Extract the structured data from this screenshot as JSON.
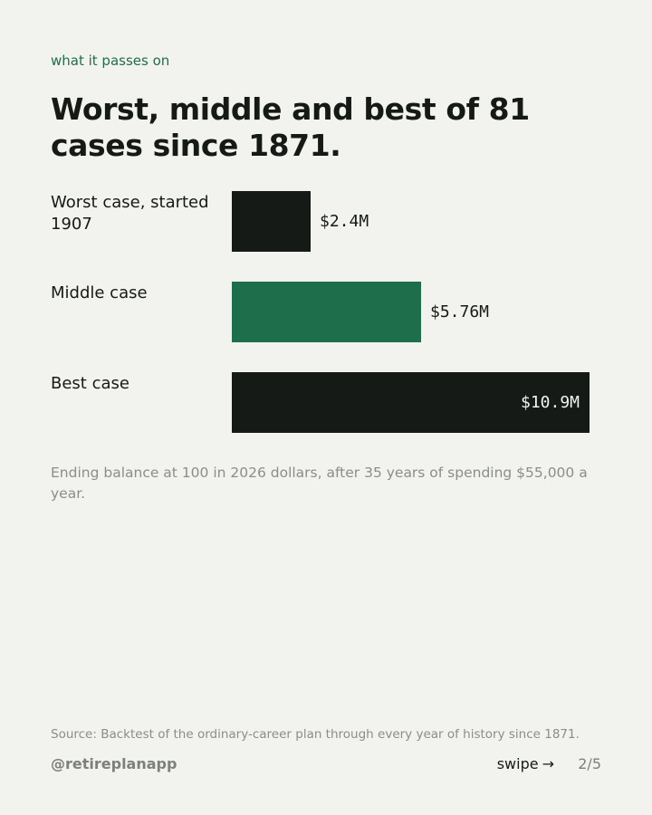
{
  "kicker": "what it passes on",
  "title": "Worst, middle and best of 81 cases since 1871.",
  "chart_data": {
    "type": "bar",
    "orientation": "horizontal",
    "title": "Worst, middle and best of 81 cases since 1871.",
    "categories": [
      "Worst case, started 1907",
      "Middle case",
      "Best case"
    ],
    "values": [
      2.4,
      5.76,
      10.9
    ],
    "value_labels": [
      "$2.4M",
      "$5.76M",
      "$10.9M"
    ],
    "unit": "$M",
    "colors": [
      "#161a17",
      "#1e6e4b",
      "#161a17"
    ],
    "xlim": [
      0,
      10.9
    ],
    "grid": false,
    "legend": "none"
  },
  "caption": "Ending balance at 100 in 2026 dollars, after 35 years of spending $55,000 a year.",
  "source": "Source: Backtest of the ordinary-career plan through every year of history since 1871.",
  "footer": {
    "handle": "@retireplanapp",
    "swipe_label": "swipe",
    "arrow": "→",
    "page": "2/5"
  },
  "colors": {
    "background": "#f2f3ef",
    "accent": "#1e6e4b",
    "ink": "#161a17",
    "muted": "#8a8d89"
  }
}
